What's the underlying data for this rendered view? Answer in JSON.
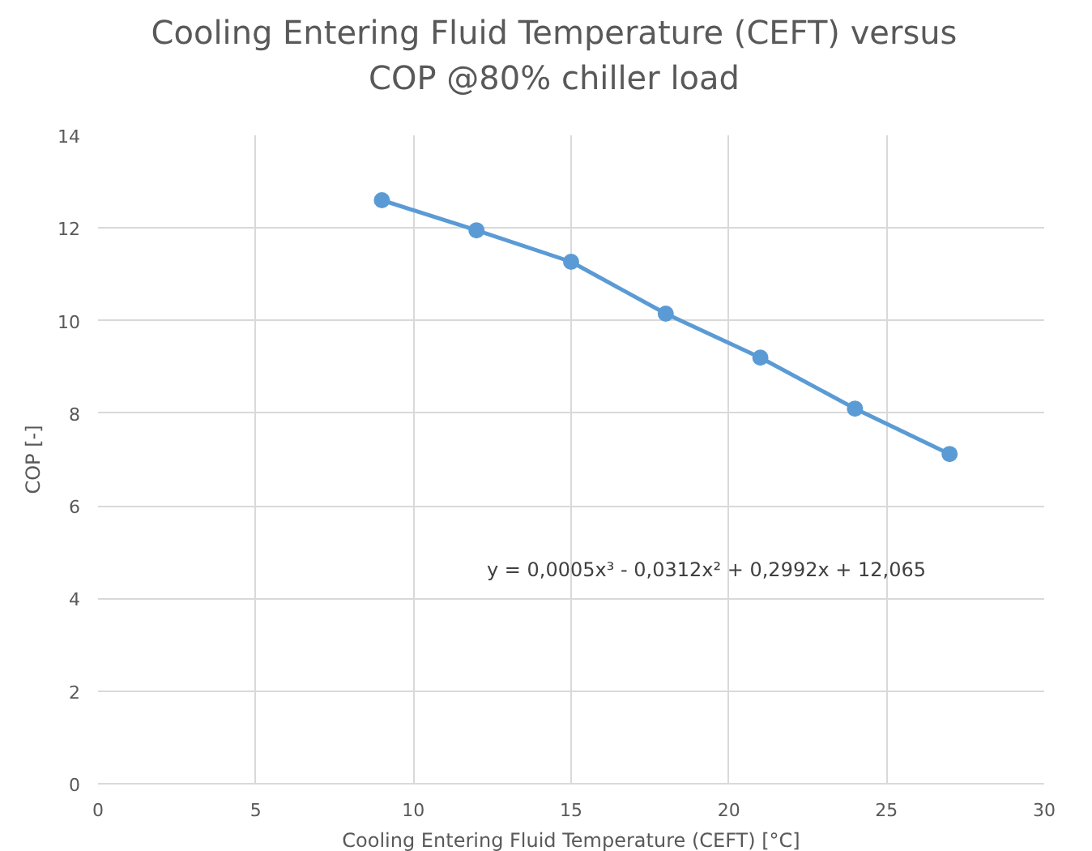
{
  "chart_data": {
    "type": "line",
    "title": "Cooling Entering Fluid Temperature (CEFT) versus\nCOP @80% chiller load",
    "xlabel": "Cooling Entering Fluid Temperature (CEFT) [°C]",
    "ylabel": "COP [-]",
    "x": [
      9,
      12,
      15,
      18,
      21,
      24,
      27
    ],
    "series": [
      {
        "color": "#5b9bd5",
        "values": [
          12.6,
          11.95,
          11.27,
          10.15,
          9.2,
          8.1,
          7.12
        ]
      }
    ],
    "xlim": [
      0,
      30
    ],
    "xticks": [
      0,
      5,
      10,
      15,
      20,
      25,
      30
    ],
    "ylim": [
      0,
      14
    ],
    "yticks": [
      0,
      2,
      4,
      6,
      8,
      10,
      12,
      14
    ],
    "grid": true,
    "marker": "circle",
    "line_style": "solid",
    "annotations": [
      "y = 0,0005x³ - 0,0312x² + 0,2992x + 12,065"
    ]
  }
}
